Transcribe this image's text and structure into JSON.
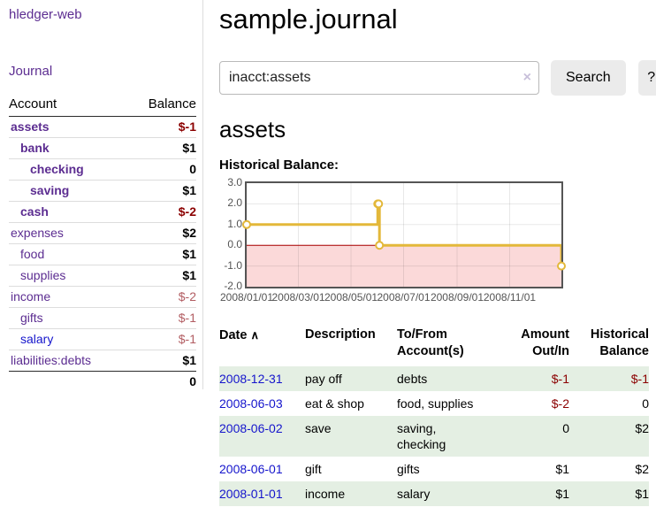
{
  "app": {
    "brand": "hledger-web"
  },
  "sidebar": {
    "journal_link": "Journal",
    "account_header": "Account",
    "balance_header": "Balance",
    "accounts": [
      {
        "name": "assets",
        "balance": "$-1",
        "level": 0,
        "matched": true
      },
      {
        "name": "bank",
        "balance": "$1",
        "level": 1,
        "matched": true
      },
      {
        "name": "checking",
        "balance": "0",
        "level": 2,
        "matched": true
      },
      {
        "name": "saving",
        "balance": "$1",
        "level": 2,
        "matched": true
      },
      {
        "name": "cash",
        "balance": "$-2",
        "level": 1,
        "matched": true
      },
      {
        "name": "expenses",
        "balance": "$2",
        "level": 0,
        "matched": false
      },
      {
        "name": "food",
        "balance": "$1",
        "level": 1,
        "matched": false
      },
      {
        "name": "supplies",
        "balance": "$1",
        "level": 1,
        "matched": false
      },
      {
        "name": "income",
        "balance": "$-2",
        "level": 0,
        "matched": false
      },
      {
        "name": "gifts",
        "balance": "$-1",
        "level": 1,
        "matched": false
      },
      {
        "name": "salary",
        "balance": "$-1",
        "level": 1,
        "matched": false,
        "unvisited": true
      },
      {
        "name": "liabilities:debts",
        "balance": "$1",
        "level": 0,
        "matched": false
      }
    ],
    "total": "0"
  },
  "main": {
    "title": "sample.journal",
    "search": {
      "value": "inacct:assets",
      "clear_icon": "×",
      "search_button": "Search",
      "help_button": "?"
    },
    "section_heading": "assets",
    "chart_heading": "Historical Balance:"
  },
  "chart_data": {
    "type": "line",
    "step": true,
    "title": "Historical Balance",
    "series": [
      {
        "name": "$",
        "color": "#e3b83a",
        "points": [
          [
            "2008-01-01",
            1
          ],
          [
            "2008-06-01",
            2
          ],
          [
            "2008-06-02",
            2
          ],
          [
            "2008-06-03",
            0
          ],
          [
            "2008-12-31",
            -1
          ]
        ]
      }
    ],
    "x_range": [
      "2008-01-01",
      "2008-12-31"
    ],
    "ylim": [
      -2,
      3
    ],
    "y_ticks": [
      "3.0",
      "2.0",
      "1.0",
      "0.0",
      "-1.0",
      "-2.0"
    ],
    "x_ticks": [
      {
        "date": "2008-01-01",
        "label": "2008/01/01"
      },
      {
        "date": "2008-03-01",
        "label": "2008/03/01"
      },
      {
        "date": "2008-05-01",
        "label": "2008/05/01"
      },
      {
        "date": "2008-07-01",
        "label": "2008/07/01"
      },
      {
        "date": "2008-09-01",
        "label": "2008/09/01"
      },
      {
        "date": "2008-11-01",
        "label": "2008/11/01"
      }
    ],
    "grid": true,
    "legend_position": "top-right",
    "negative_region_fill": "#fbd9d9",
    "zero_line_color": "#aa0000"
  },
  "register": {
    "headers": [
      {
        "lines": [
          "Date"
        ],
        "sort": "∧",
        "align": "left"
      },
      {
        "lines": [
          "Description"
        ],
        "align": "left"
      },
      {
        "lines": [
          "To/From",
          "Account(s)"
        ],
        "align": "left"
      },
      {
        "lines": [
          "Amount",
          "Out/In"
        ],
        "align": "right"
      },
      {
        "lines": [
          "Historical",
          "Balance"
        ],
        "align": "right"
      }
    ],
    "rows": [
      {
        "date": "2008-12-31",
        "description": "pay off",
        "accounts": "debts",
        "amount": "$-1",
        "balance": "$-1",
        "highlight": true
      },
      {
        "date": "2008-06-03",
        "description": "eat & shop",
        "accounts": "food, supplies",
        "amount": "$-2",
        "balance": "0",
        "highlight": false
      },
      {
        "date": "2008-06-02",
        "description": "save",
        "accounts": "saving, checking",
        "amount": "0",
        "balance": "$2",
        "highlight": true
      },
      {
        "date": "2008-06-01",
        "description": "gift",
        "accounts": "gifts",
        "amount": "$1",
        "balance": "$2",
        "highlight": false
      },
      {
        "date": "2008-01-01",
        "description": "income",
        "accounts": "salary",
        "amount": "$1",
        "balance": "$1",
        "highlight": true
      }
    ]
  },
  "colors": {
    "link_purple": "#5c2d91",
    "link_blue": "#1515cc",
    "negative_strong": "#8b0000",
    "negative_soft": "#b25d62",
    "row_highlight": "#e4efe3",
    "chart_line": "#e3b83a",
    "chart_negative_fill": "#fbd9d9",
    "zero_line": "#aa0000",
    "tick_text": "#545454"
  }
}
